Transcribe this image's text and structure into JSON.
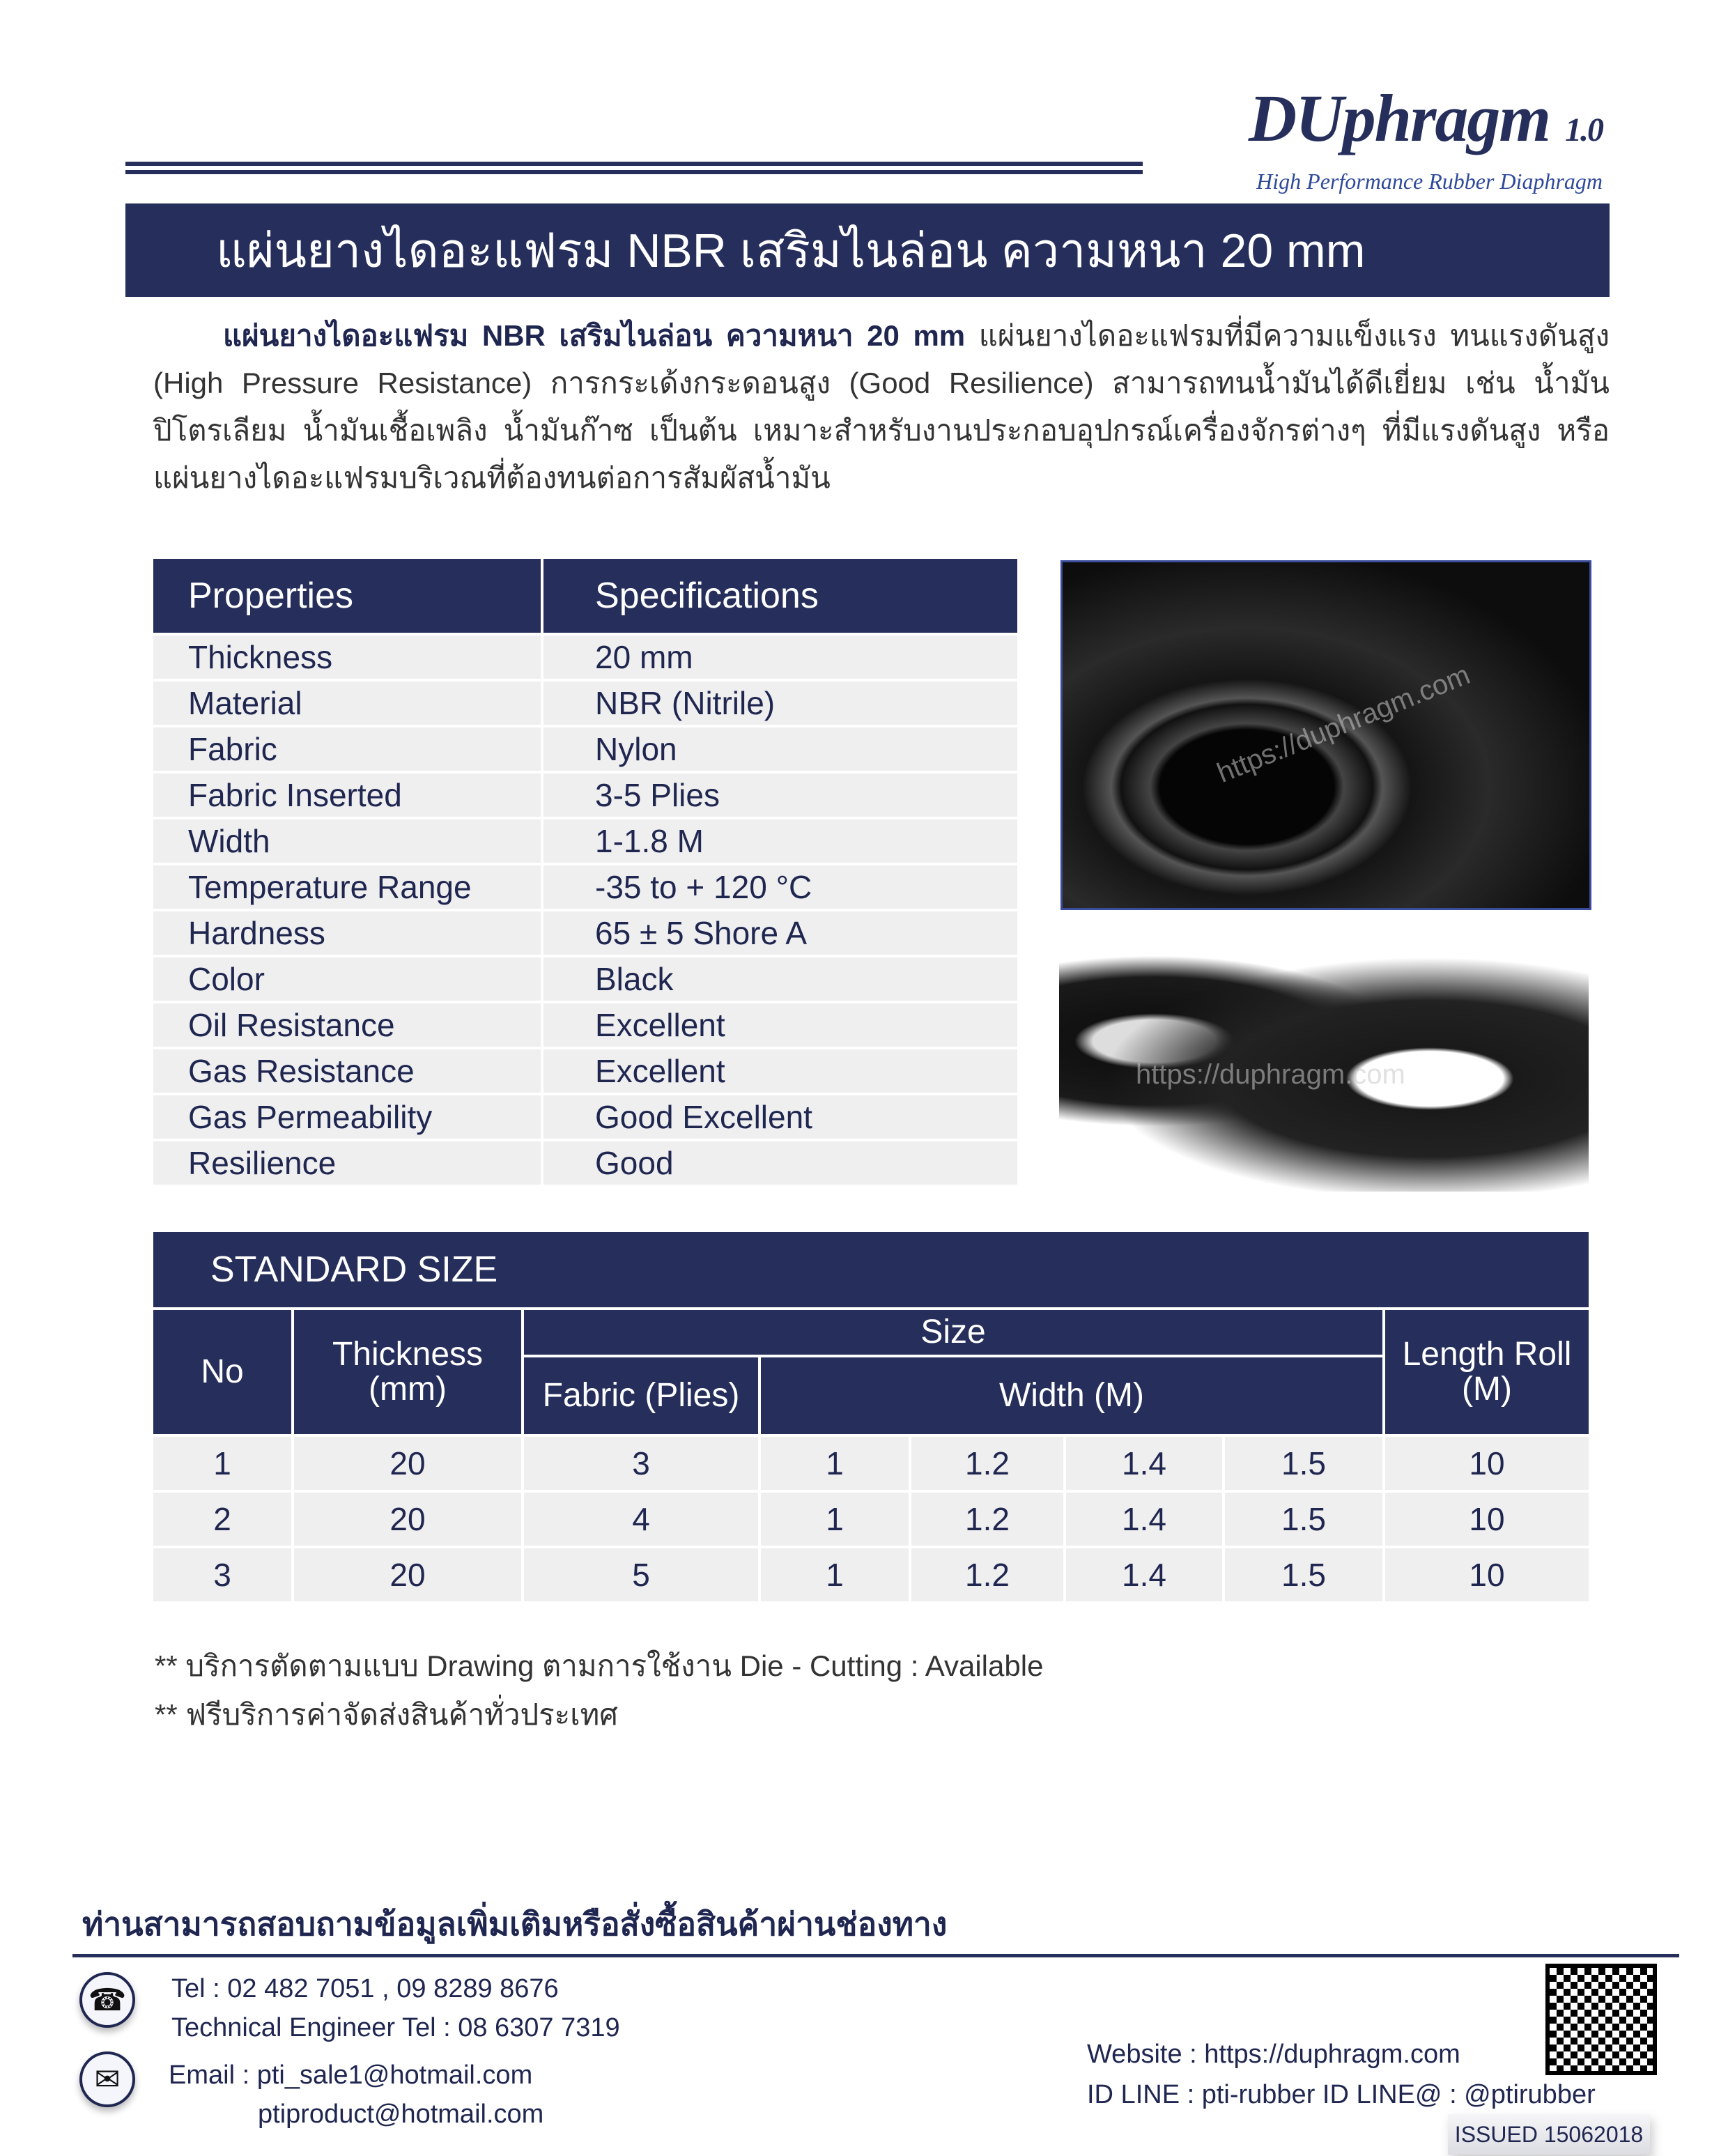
{
  "logo": {
    "name": "DUphragm",
    "version": "1.0",
    "tagline": "High Performance Rubber Diaphragm"
  },
  "title": "แผ่นยางไดอะแฟรม NBR เสริมไนล่อน ความหนา 20 mm",
  "description": {
    "bold": "แผ่นยางไดอะแฟรม NBR เสริมไนล่อน ความหนา 20 mm",
    "text": " แผ่นยางไดอะแฟรมที่มีความแข็งแรง ทนแรงดันสูง (High Pressure Resistance) การกระเด้งกระดอนสูง (Good Resilience) สามารถทนน้ำมันได้ดีเยี่ยม เช่น น้ำมันปิโตรเลียม น้ำมันเชื้อเพลิง น้ำมันก๊าซ เป็นต้น เหมาะสำหรับงานประกอบอุปกรณ์เครื่องจักรต่างๆ ที่มีแรงดันสูง หรือแผ่นยางไดอะแฟรมบริเวณที่ต้องทนต่อการสัมผัสน้ำมัน"
  },
  "properties": {
    "headers": [
      "Properties",
      "Specifications"
    ],
    "rows": [
      [
        "Thickness",
        "20 mm"
      ],
      [
        "Material",
        "NBR (Nitrile)"
      ],
      [
        "Fabric",
        "Nylon"
      ],
      [
        "Fabric Inserted",
        "3-5 Plies"
      ],
      [
        "Width",
        "1-1.8 M"
      ],
      [
        "Temperature Range",
        "-35 to + 120 °C"
      ],
      [
        "Hardness",
        "65 ± 5 Shore A"
      ],
      [
        "Color",
        "Black"
      ],
      [
        "Oil Resistance",
        "Excellent"
      ],
      [
        "Gas Resistance",
        "Excellent"
      ],
      [
        "Gas Permeability",
        "Good Excellent"
      ],
      [
        "Resilience",
        "Good"
      ]
    ]
  },
  "images": {
    "watermark1": "https://duphragm.com",
    "watermark2": "https://duphragm.com"
  },
  "standard_size": {
    "title": "STANDARD SIZE",
    "headers": {
      "no": "No",
      "thickness": "Thickness (mm)",
      "size": "Size",
      "fabric": "Fabric (Plies)",
      "width": "Width (M)",
      "length": "Length Roll (M)"
    },
    "rows": [
      [
        "1",
        "20",
        "3",
        "1",
        "1.2",
        "1.4",
        "1.5",
        "10"
      ],
      [
        "2",
        "20",
        "4",
        "1",
        "1.2",
        "1.4",
        "1.5",
        "10"
      ],
      [
        "3",
        "20",
        "5",
        "1",
        "1.2",
        "1.4",
        "1.5",
        "10"
      ]
    ]
  },
  "notes": [
    "** บริการตัดตามแบบ Drawing ตามการใช้งาน Die - Cutting : Available",
    "** ฟรีบริการค่าจัดส่งสินค้าทั่วประเทศ"
  ],
  "contact": {
    "heading": "ท่านสามารถสอบถามข้อมูลเพิ่มเติมหรือสั่งซื้อสินค้าผ่านช่องทาง",
    "tel": "Tel : 02 482 7051 , 09 8289 8676",
    "tech": "Technical Engineer Tel : 08 6307 7319",
    "email1": "Email :  pti_sale1@hotmail.com",
    "email2": "ptiproduct@hotmail.com",
    "website": "Website : https://duphragm.com",
    "line": "ID LINE :  pti-rubber  ID LINE@ : @ptirubber",
    "issued": "ISSUED 15062018"
  }
}
